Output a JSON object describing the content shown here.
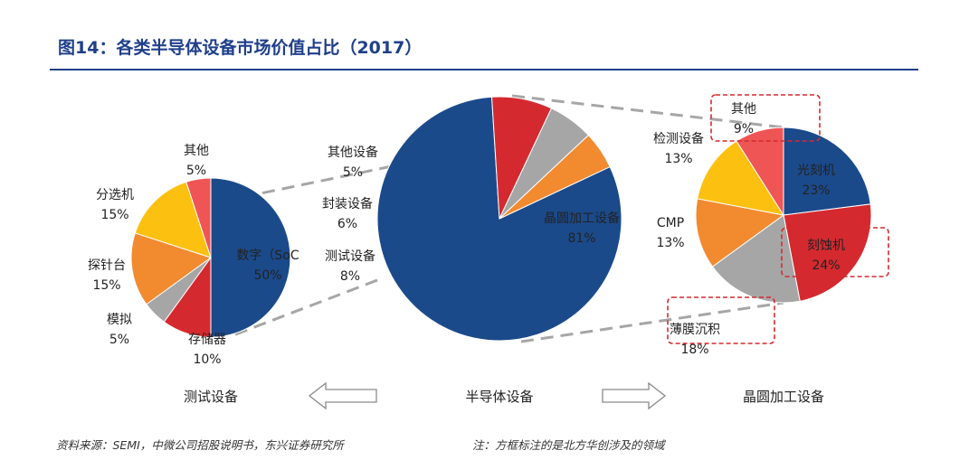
{
  "title": "图14：各类半导体设备市场价值占比（2017）",
  "source": "资料来源：SEMI，中微公司招股说明书，东兴证券研究所",
  "note": "注：方框标注的是北方华创涉及的领域",
  "arrow_color": "#8a8a8a",
  "chart_data": [
    {
      "type": "pie",
      "category": "半导体设备",
      "slices": [
        {
          "label": "晶圆加工设备",
          "value": 81,
          "pct": "81%",
          "color": "#1b4a8b"
        },
        {
          "label": "测试设备",
          "value": 8,
          "pct": "8%",
          "color": "#d42a2f"
        },
        {
          "label": "封装设备",
          "value": 6,
          "pct": "6%",
          "color": "#a6a6a6"
        },
        {
          "label": "其他设备",
          "value": 5,
          "pct": "5%",
          "color": "#f28a30"
        }
      ]
    },
    {
      "type": "pie",
      "category": "测试设备",
      "slices": [
        {
          "label": "数字（SoC",
          "value": 50,
          "pct": "50%",
          "color": "#1b4a8b"
        },
        {
          "label": "存储器",
          "value": 10,
          "pct": "10%",
          "color": "#d42a2f"
        },
        {
          "label": "模拟",
          "value": 5,
          "pct": "5%",
          "color": "#a6a6a6"
        },
        {
          "label": "探针台",
          "value": 15,
          "pct": "15%",
          "color": "#f28a30"
        },
        {
          "label": "分选机",
          "value": 15,
          "pct": "15%",
          "color": "#fcc010"
        },
        {
          "label": "其他",
          "value": 5,
          "pct": "5%",
          "color": "#ef5555"
        }
      ]
    },
    {
      "type": "pie",
      "category": "晶圆加工设备",
      "slices": [
        {
          "label": "光刻机",
          "value": 23,
          "pct": "23%",
          "color": "#1b4a8b",
          "boxed": false
        },
        {
          "label": "刻蚀机",
          "value": 24,
          "pct": "24%",
          "color": "#d42a2f",
          "boxed": true
        },
        {
          "label": "薄膜沉积",
          "value": 18,
          "pct": "18%",
          "color": "#a6a6a6",
          "boxed": true
        },
        {
          "label": "CMP",
          "value": 13,
          "pct": "13%",
          "color": "#f28a30",
          "boxed": false
        },
        {
          "label": "检测设备",
          "value": 13,
          "pct": "13%",
          "color": "#fcc010",
          "boxed": false
        },
        {
          "label": "其他",
          "value": 9,
          "pct": "9%",
          "color": "#ef5555",
          "boxed": true
        }
      ]
    }
  ]
}
